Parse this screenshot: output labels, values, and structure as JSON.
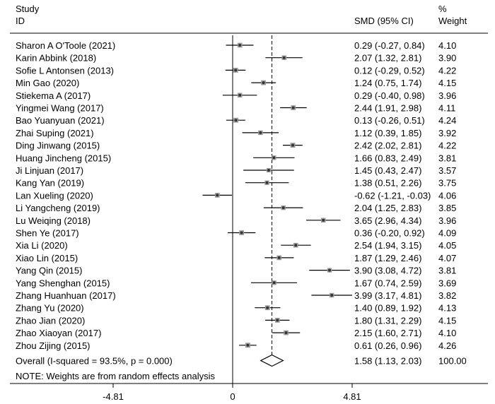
{
  "chart_data": {
    "type": "forest",
    "headers": {
      "study_line1": "Study",
      "study_line2": "ID",
      "effect": "SMD (95% CI)",
      "weight_line1": "%",
      "weight_line2": "Weight"
    },
    "studies": [
      {
        "name": "Sharon A O'Toole (2021)",
        "smd": 0.29,
        "lo": -0.27,
        "hi": 0.84,
        "ci_text": "0.29 (-0.27, 0.84)",
        "weight": "4.10"
      },
      {
        "name": "Karin Abbink (2018)",
        "smd": 2.07,
        "lo": 1.32,
        "hi": 2.81,
        "ci_text": "2.07 (1.32, 2.81)",
        "weight": "3.90"
      },
      {
        "name": "Sofie L Antonsen (2013)",
        "smd": 0.12,
        "lo": -0.29,
        "hi": 0.52,
        "ci_text": "0.12 (-0.29, 0.52)",
        "weight": "4.22"
      },
      {
        "name": "Min Gao (2020)",
        "smd": 1.24,
        "lo": 0.75,
        "hi": 1.74,
        "ci_text": "1.24 (0.75, 1.74)",
        "weight": "4.15"
      },
      {
        "name": "Stiekema A (2017)",
        "smd": 0.29,
        "lo": -0.4,
        "hi": 0.98,
        "ci_text": "0.29 (-0.40, 0.98)",
        "weight": "3.96"
      },
      {
        "name": "Yingmei Wang (2017)",
        "smd": 2.44,
        "lo": 1.91,
        "hi": 2.98,
        "ci_text": "2.44 (1.91, 2.98)",
        "weight": "4.11"
      },
      {
        "name": "Bao Yuanyuan (2021)",
        "smd": 0.13,
        "lo": -0.26,
        "hi": 0.51,
        "ci_text": "0.13 (-0.26, 0.51)",
        "weight": "4.24"
      },
      {
        "name": "Zhai Suping (2021)",
        "smd": 1.12,
        "lo": 0.39,
        "hi": 1.85,
        "ci_text": "1.12 (0.39, 1.85)",
        "weight": "3.92"
      },
      {
        "name": "Ding Jinwang (2015)",
        "smd": 2.42,
        "lo": 2.02,
        "hi": 2.81,
        "ci_text": "2.42 (2.02, 2.81)",
        "weight": "4.22"
      },
      {
        "name": "Huang Jincheng (2015)",
        "smd": 1.66,
        "lo": 0.83,
        "hi": 2.49,
        "ci_text": "1.66 (0.83, 2.49)",
        "weight": "3.81"
      },
      {
        "name": "Ji Linjuan (2017)",
        "smd": 1.45,
        "lo": 0.43,
        "hi": 2.47,
        "ci_text": "1.45 (0.43, 2.47)",
        "weight": "3.57"
      },
      {
        "name": "Kang Yan (2019)",
        "smd": 1.38,
        "lo": 0.51,
        "hi": 2.26,
        "ci_text": "1.38 (0.51, 2.26)",
        "weight": "3.75"
      },
      {
        "name": "Lan Xueling (2020)",
        "smd": -0.62,
        "lo": -1.21,
        "hi": -0.03,
        "ci_text": "-0.62 (-1.21, -0.03)",
        "weight": "4.06"
      },
      {
        "name": "Li Yangcheng (2019)",
        "smd": 2.04,
        "lo": 1.25,
        "hi": 2.83,
        "ci_text": "2.04 (1.25, 2.83)",
        "weight": "3.85"
      },
      {
        "name": "Lu Weiqing (2018)",
        "smd": 3.65,
        "lo": 2.96,
        "hi": 4.34,
        "ci_text": "3.65 (2.96, 4.34)",
        "weight": "3.96"
      },
      {
        "name": "Shen Ye (2017)",
        "smd": 0.36,
        "lo": -0.2,
        "hi": 0.92,
        "ci_text": "0.36 (-0.20, 0.92)",
        "weight": "4.09"
      },
      {
        "name": "Xia Li (2020)",
        "smd": 2.54,
        "lo": 1.94,
        "hi": 3.15,
        "ci_text": "2.54 (1.94, 3.15)",
        "weight": "4.05"
      },
      {
        "name": "Xiao Lin (2015)",
        "smd": 1.87,
        "lo": 1.29,
        "hi": 2.46,
        "ci_text": "1.87 (1.29, 2.46)",
        "weight": "4.07"
      },
      {
        "name": "Yang Qin (2015)",
        "smd": 3.9,
        "lo": 3.08,
        "hi": 4.72,
        "ci_text": "3.90 (3.08, 4.72)",
        "weight": "3.81"
      },
      {
        "name": "Yang Shenghan (2015)",
        "smd": 1.67,
        "lo": 0.74,
        "hi": 2.59,
        "ci_text": "1.67 (0.74, 2.59)",
        "weight": "3.69"
      },
      {
        "name": "Zhang Huanhuan (2017)",
        "smd": 3.99,
        "lo": 3.17,
        "hi": 4.81,
        "ci_text": "3.99 (3.17, 4.81)",
        "weight": "3.82"
      },
      {
        "name": "Zhang Yu (2020)",
        "smd": 1.4,
        "lo": 0.89,
        "hi": 1.92,
        "ci_text": "1.40 (0.89, 1.92)",
        "weight": "4.13"
      },
      {
        "name": "Zhao Jian (2020)",
        "smd": 1.8,
        "lo": 1.31,
        "hi": 2.29,
        "ci_text": "1.80 (1.31, 2.29)",
        "weight": "4.15"
      },
      {
        "name": "Zhao Xiaoyan (2017)",
        "smd": 2.15,
        "lo": 1.6,
        "hi": 2.71,
        "ci_text": "2.15 (1.60, 2.71)",
        "weight": "4.10"
      },
      {
        "name": "Zhou Zijing (2015)",
        "smd": 0.61,
        "lo": 0.26,
        "hi": 0.96,
        "ci_text": "0.61 (0.26, 0.96)",
        "weight": "4.26"
      }
    ],
    "overall": {
      "label": "Overall  (I-squared = 93.5%, p = 0.000)",
      "smd": 1.58,
      "lo": 1.13,
      "hi": 2.03,
      "ci_text": "1.58 (1.13, 2.03)",
      "weight": "100.00"
    },
    "note": "NOTE: Weights are from random effects analysis",
    "x_ticks": [
      {
        "value": -4.81,
        "label": "-4.81"
      },
      {
        "value": 0,
        "label": "0"
      },
      {
        "value": 4.81,
        "label": "4.81"
      }
    ],
    "xlim": [
      -4.81,
      4.81
    ],
    "colors": {
      "marker": "#333333",
      "reference_line": "#000000",
      "text": "#000000"
    }
  }
}
